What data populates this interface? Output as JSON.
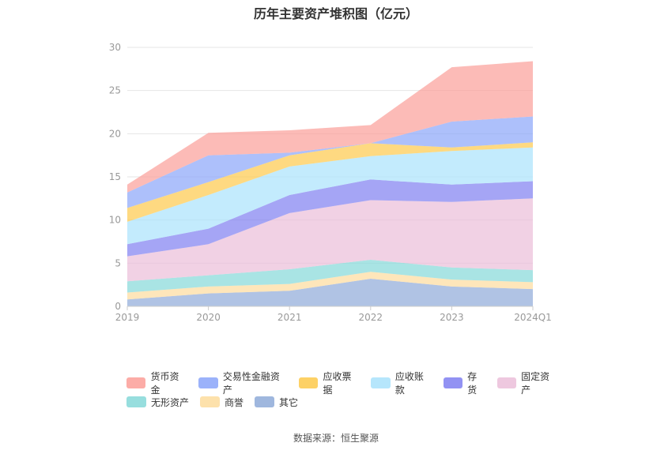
{
  "chart_data": {
    "type": "area",
    "stacked": true,
    "title": "历年主要资产堆积图（亿元）",
    "categories": [
      "2019",
      "2020",
      "2021",
      "2022",
      "2023",
      "2024Q1"
    ],
    "ylim": [
      0,
      30
    ],
    "yticks": [
      "0",
      "5",
      "10",
      "15",
      "20",
      "25",
      "30"
    ],
    "grid": true,
    "legend_position": "bottom",
    "series": [
      {
        "name": "其它",
        "color": "#8eaad8",
        "values": [
          0.8,
          1.5,
          1.8,
          3.2,
          2.3,
          2.0
        ]
      },
      {
        "name": "商誉",
        "color": "#fddc9c",
        "values": [
          0.8,
          0.8,
          0.8,
          0.8,
          0.8,
          0.8
        ]
      },
      {
        "name": "无形资产",
        "color": "#85d8d8",
        "values": [
          1.3,
          1.3,
          1.7,
          1.4,
          1.4,
          1.4
        ]
      },
      {
        "name": "固定资产",
        "color": "#ebbed9",
        "values": [
          2.9,
          3.6,
          6.5,
          6.9,
          7.6,
          8.3
        ]
      },
      {
        "name": "存货",
        "color": "#7f7ff1",
        "values": [
          1.4,
          1.8,
          2.1,
          2.4,
          2.0,
          2.0
        ]
      },
      {
        "name": "应收账款",
        "color": "#a9e2fc",
        "values": [
          2.6,
          3.9,
          3.3,
          2.7,
          3.9,
          3.9
        ]
      },
      {
        "name": "应收票据",
        "color": "#fdc94b",
        "values": [
          1.6,
          1.5,
          1.3,
          1.5,
          0.4,
          0.6
        ]
      },
      {
        "name": "交易性金融资产",
        "color": "#8aa5f9",
        "values": [
          1.8,
          3.1,
          0.3,
          0.0,
          3.0,
          3.0
        ]
      },
      {
        "name": "货币资金",
        "color": "#fb9e98",
        "values": [
          0.9,
          2.6,
          2.6,
          2.1,
          6.3,
          6.4
        ]
      }
    ]
  },
  "legend_rows": [
    [
      "货币资金",
      "交易性金融资产",
      "应收票据",
      "应收账款",
      "存货",
      "固定资产"
    ],
    [
      "无形资产",
      "商誉",
      "其它"
    ]
  ],
  "source": "数据来源：恒生聚源"
}
